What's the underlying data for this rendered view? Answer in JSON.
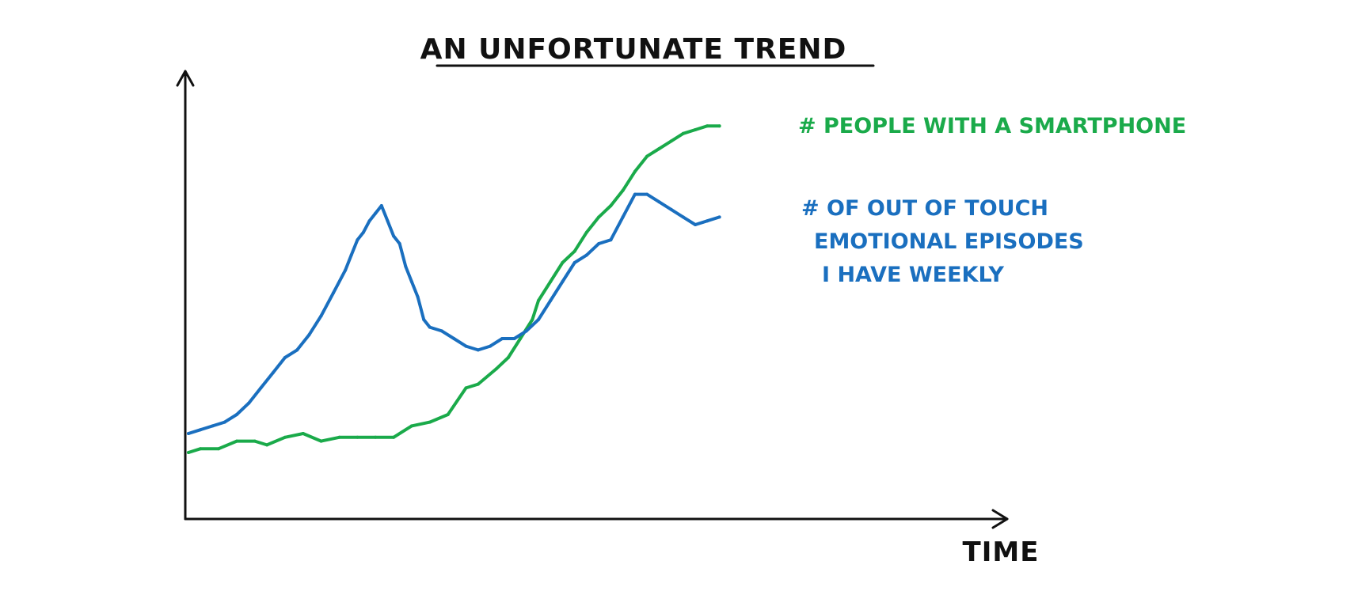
{
  "chart_data": {
    "type": "line",
    "title": "AN UNFORTUNATE TREND",
    "xlabel": "TIME",
    "ylabel": "",
    "grid": false,
    "legend": "inline labels at right end of each line",
    "xlim": [
      0,
      100
    ],
    "ylim": [
      0,
      100
    ],
    "series": [
      {
        "name": "# PEOPLE WITH A SMARTPHONE",
        "label_lines": [
          "# PEOPLE WITH A SMARTPHONE"
        ],
        "color": "#1aaa4a",
        "x": [
          0,
          2,
          5,
          8,
          11,
          13,
          16,
          19,
          22,
          25,
          28,
          31,
          34,
          37,
          40,
          43,
          46,
          48,
          51,
          53,
          55,
          57,
          58,
          60,
          62,
          64,
          66,
          68,
          70,
          72,
          74,
          76,
          78,
          80,
          82,
          84,
          86,
          88
        ],
        "y": [
          10,
          11,
          11,
          13,
          13,
          12,
          14,
          15,
          13,
          14,
          14,
          14,
          14,
          17,
          18,
          20,
          27,
          28,
          32,
          35,
          40,
          45,
          50,
          55,
          60,
          63,
          68,
          72,
          75,
          79,
          84,
          88,
          90,
          92,
          94,
          95,
          96,
          96
        ]
      },
      {
        "name": "# OF OUT OF TOUCH EMOTIONAL EPISODES I HAVE WEEKLY",
        "label_lines": [
          "# OF OUT OF TOUCH",
          "EMOTIONAL EPISODES",
          "I HAVE WEEKLY"
        ],
        "color": "#1a6fbf",
        "x": [
          0,
          2,
          4,
          6,
          8,
          10,
          12,
          14,
          16,
          18,
          20,
          22,
          24,
          26,
          27,
          28,
          29,
          30,
          31,
          32,
          33,
          34,
          35,
          36,
          37,
          38,
          39,
          40,
          42,
          44,
          46,
          48,
          50,
          52,
          54,
          56,
          58,
          60,
          62,
          64,
          66,
          68,
          70,
          72,
          74,
          76,
          78,
          80,
          82,
          84,
          86,
          88
        ],
        "y": [
          15,
          16,
          17,
          18,
          20,
          23,
          27,
          31,
          35,
          37,
          41,
          46,
          52,
          58,
          62,
          66,
          68,
          71,
          73,
          75,
          71,
          67,
          65,
          59,
          55,
          51,
          45,
          43,
          42,
          40,
          38,
          37,
          38,
          40,
          40,
          42,
          45,
          50,
          55,
          60,
          62,
          65,
          66,
          72,
          78,
          78,
          76,
          74,
          72,
          70,
          71,
          72
        ]
      }
    ]
  }
}
